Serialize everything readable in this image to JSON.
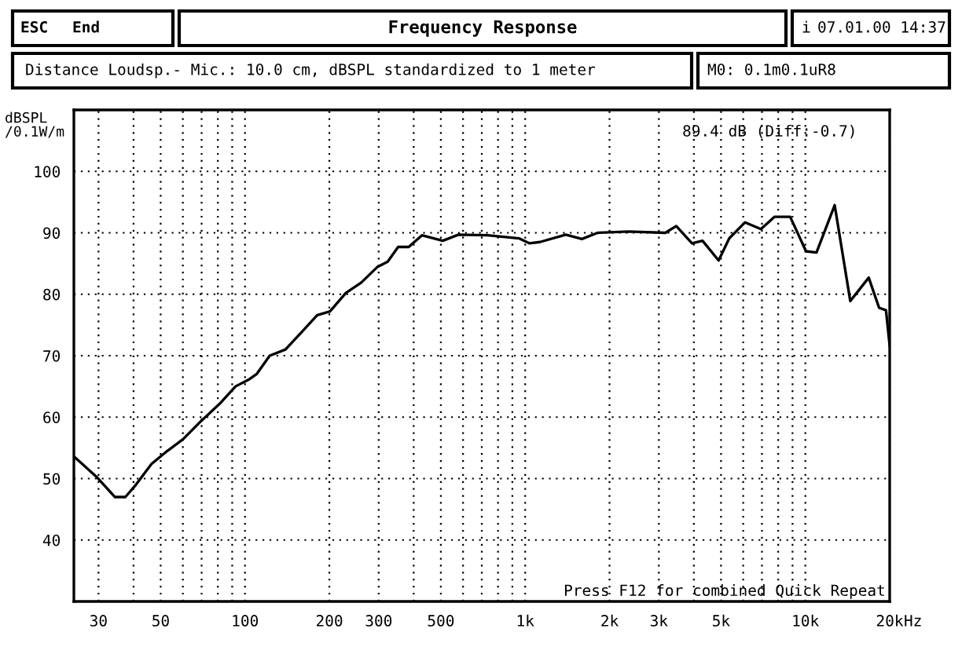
{
  "chart_data": {
    "type": "line",
    "title": "Frequency Response",
    "ylabel": "dBSPL\n/0.1W/m",
    "annotations": [
      "ESC",
      "End",
      "i",
      "07.01.00 14:37",
      "Distance Loudsp.- Mic.: 10.0 cm, dBSPL standardized to 1 meter",
      "M0: 0.1m0.1uR8",
      "89.4 dB (Diff:-0.7)",
      "Press F12 for combined Quick Repeat"
    ],
    "x": [
      24.8,
      29.5,
      34.3,
      37.4,
      40.8,
      46.4,
      52.8,
      60.1,
      68.4,
      81.3,
      92.5,
      103,
      110,
      122.5,
      139.4,
      162,
      181,
      201,
      229,
      260,
      296,
      323,
      352,
      384,
      428,
      508,
      578,
      735,
      950,
      1034,
      1128,
      1397,
      1594,
      1813,
      2345,
      3165,
      3461,
      3939,
      4296,
      4903,
      5351,
      6094,
      6942,
      7753,
      8827,
      10054,
      10958,
      12725,
      14467,
      16834,
      18332,
      19400,
      20000
    ],
    "series": [
      {
        "color": "#000000",
        "values": [
          53.4,
          50.3,
          47.0,
          47.0,
          49.0,
          52.4,
          54.5,
          56.4,
          59.0,
          62.2,
          65.0,
          66.1,
          67.0,
          70.0,
          71.0,
          74.2,
          76.6,
          77.2,
          80.2,
          81.9,
          84.4,
          85.3,
          87.7,
          87.7,
          89.6,
          88.7,
          89.7,
          89.6,
          89.1,
          88.3,
          88.5,
          89.7,
          89.0,
          90.0,
          90.2,
          90.0,
          91.1,
          88.3,
          88.7,
          85.5,
          89.1,
          91.7,
          90.6,
          92.6,
          92.6,
          87.0,
          86.8,
          94.5,
          78.9,
          82.7,
          77.8,
          77.4,
          71.6
        ]
      }
    ],
    "log": "x",
    "xlim": [
      24.5,
      20000
    ],
    "ylim": [
      30,
      110
    ],
    "xticks": [
      30,
      {
        "value": 40,
        "label": null
      },
      50,
      {
        "value": 60,
        "label": null
      },
      {
        "value": 70,
        "label": null
      },
      {
        "value": 80,
        "label": null
      },
      {
        "value": 90,
        "label": null
      },
      100,
      200,
      300,
      {
        "value": 400,
        "label": null
      },
      500,
      {
        "value": 600,
        "label": null
      },
      {
        "value": 700,
        "label": null
      },
      {
        "value": 800,
        "label": null
      },
      {
        "value": 900,
        "label": null
      },
      {
        "value": 1000,
        "label": "1k"
      },
      {
        "value": 2000,
        "label": "2k"
      },
      {
        "value": 3000,
        "label": "3k"
      },
      {
        "value": 4000,
        "label": null
      },
      {
        "value": 5000,
        "label": "5k"
      },
      {
        "value": 6000,
        "label": null
      },
      {
        "value": 7000,
        "label": null
      },
      {
        "value": 8000,
        "label": null
      },
      {
        "value": 9000,
        "label": null
      },
      {
        "value": 10000,
        "label": "10k"
      },
      {
        "value": 20000,
        "label": "20k"
      }
    ],
    "xlabel": "Hz",
    "yticks": [
      40,
      50,
      60,
      70,
      80,
      90,
      100
    ],
    "grid": true,
    "line_style": "solid",
    "legend": false
  }
}
